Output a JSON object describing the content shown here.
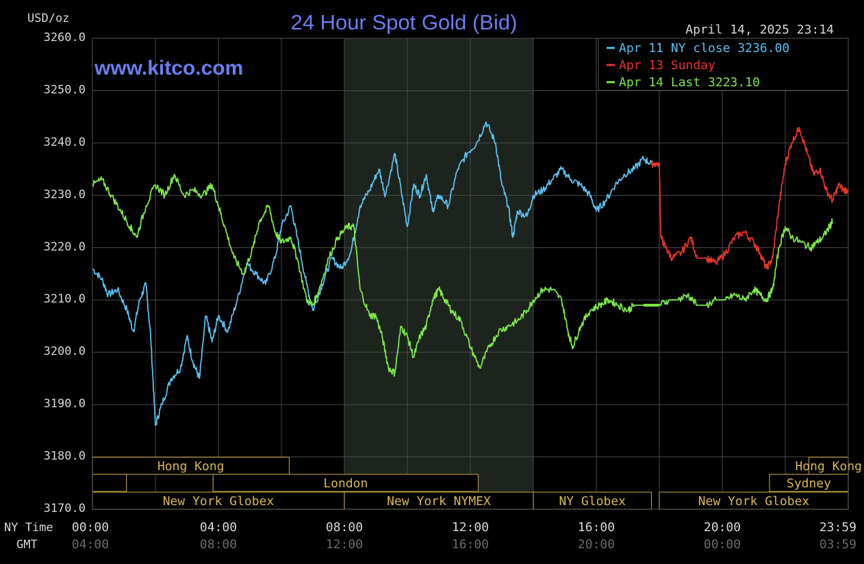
{
  "header": {
    "title": "24 Hour Spot Gold (Bid)",
    "unit": "USD/oz",
    "timestamp": "April 14, 2025 23:14",
    "watermark": "www.kitco.com"
  },
  "legend": [
    {
      "label": "Apr 11 NY close 3236.00",
      "color": "#5bc0f0"
    },
    {
      "label": "Apr 13 Sunday",
      "color": "#e8342a"
    },
    {
      "label": "Apr 14 Last 3223.10",
      "color": "#7de84a"
    }
  ],
  "axis_labels": {
    "ny_time": "NY Time",
    "gmt": "GMT"
  },
  "sessions": {
    "top": [
      {
        "label": "Hong Kong",
        "start": 0,
        "end": 6.25
      },
      {
        "label": "Hong Kong",
        "start": 22.75,
        "end": 24
      }
    ],
    "middle": [
      {
        "label": "",
        "start": 0,
        "end": 1.08
      },
      {
        "label": "London",
        "start": 3.83,
        "end": 12.25
      },
      {
        "label": "Sydney",
        "start": 21.5,
        "end": 24
      }
    ],
    "bottom": [
      {
        "label": "New York Globex",
        "start": 0,
        "end": 8.0
      },
      {
        "label": "New York NYMEX",
        "start": 8.0,
        "end": 14.0
      },
      {
        "label": "NY Globex",
        "start": 14.0,
        "end": 17.75
      },
      {
        "label": "New York Globex",
        "start": 18.0,
        "end": 24
      }
    ]
  },
  "chart_data": {
    "type": "line",
    "title": "24 Hour Spot Gold (Bid)",
    "ylabel": "USD/oz",
    "ylim": [
      3170,
      3260
    ],
    "xlim": [
      0,
      24
    ],
    "yticks": [
      "3260.0",
      "3250.0",
      "3240.0",
      "3230.0",
      "3220.0",
      "3210.0",
      "3200.0",
      "3190.0",
      "3180.0",
      "3170.0"
    ],
    "xticks_ny": [
      "00:00",
      "04:00",
      "08:00",
      "12:00",
      "16:00",
      "20:00",
      "23:59"
    ],
    "xticks_gmt": [
      "04:00",
      "08:00",
      "12:00",
      "16:00",
      "20:00",
      "00:00",
      "03:59"
    ],
    "shaded_region": [
      8.0,
      14.0
    ],
    "grid": true,
    "legend_position": "top-right",
    "series": [
      {
        "name": "Apr 11 NY close 3236.00",
        "color": "#5bc0f0",
        "points": [
          [
            0,
            3216
          ],
          [
            0.3,
            3214
          ],
          [
            0.5,
            3211
          ],
          [
            0.8,
            3212
          ],
          [
            1.1,
            3208
          ],
          [
            1.3,
            3204
          ],
          [
            1.5,
            3210
          ],
          [
            1.7,
            3213
          ],
          [
            1.85,
            3203
          ],
          [
            2.0,
            3186
          ],
          [
            2.2,
            3190
          ],
          [
            2.5,
            3195
          ],
          [
            2.8,
            3197
          ],
          [
            3.0,
            3203
          ],
          [
            3.2,
            3198
          ],
          [
            3.4,
            3195
          ],
          [
            3.6,
            3207
          ],
          [
            3.8,
            3202
          ],
          [
            4.0,
            3207
          ],
          [
            4.3,
            3204
          ],
          [
            4.6,
            3210
          ],
          [
            4.9,
            3217
          ],
          [
            5.2,
            3215
          ],
          [
            5.5,
            3213
          ],
          [
            5.8,
            3218
          ],
          [
            6.0,
            3224
          ],
          [
            6.3,
            3228
          ],
          [
            6.5,
            3222
          ],
          [
            6.8,
            3213
          ],
          [
            7.0,
            3208
          ],
          [
            7.3,
            3213
          ],
          [
            7.6,
            3218
          ],
          [
            7.9,
            3216
          ],
          [
            8.2,
            3219
          ],
          [
            8.5,
            3228
          ],
          [
            8.8,
            3231
          ],
          [
            9.1,
            3235
          ],
          [
            9.3,
            3230
          ],
          [
            9.6,
            3238
          ],
          [
            9.8,
            3231
          ],
          [
            10.0,
            3224
          ],
          [
            10.2,
            3232
          ],
          [
            10.4,
            3230
          ],
          [
            10.6,
            3234
          ],
          [
            10.8,
            3227
          ],
          [
            11.0,
            3230
          ],
          [
            11.3,
            3228
          ],
          [
            11.6,
            3235
          ],
          [
            11.9,
            3238
          ],
          [
            12.2,
            3240
          ],
          [
            12.5,
            3244
          ],
          [
            12.8,
            3240
          ],
          [
            13.0,
            3232
          ],
          [
            13.2,
            3228
          ],
          [
            13.35,
            3222
          ],
          [
            13.5,
            3227
          ],
          [
            13.8,
            3226
          ],
          [
            14.0,
            3230
          ],
          [
            14.3,
            3231
          ],
          [
            14.6,
            3233
          ],
          [
            14.9,
            3235
          ],
          [
            15.2,
            3233
          ],
          [
            15.5,
            3232
          ],
          [
            15.8,
            3230
          ],
          [
            16.0,
            3227
          ],
          [
            16.3,
            3229
          ],
          [
            16.6,
            3232
          ],
          [
            16.9,
            3234
          ],
          [
            17.2,
            3235
          ],
          [
            17.5,
            3237
          ],
          [
            17.75,
            3236
          ]
        ]
      },
      {
        "name": "Apr 13 Sunday",
        "color": "#e8342a",
        "points": [
          [
            17.75,
            3236
          ],
          [
            18.0,
            3236
          ],
          [
            18.05,
            3222
          ],
          [
            18.2,
            3220
          ],
          [
            18.4,
            3218
          ],
          [
            18.7,
            3219
          ],
          [
            19.0,
            3222
          ],
          [
            19.2,
            3218
          ],
          [
            19.5,
            3218
          ],
          [
            19.8,
            3217
          ],
          [
            20.1,
            3219
          ],
          [
            20.4,
            3222
          ],
          [
            20.7,
            3223
          ],
          [
            21.0,
            3221
          ],
          [
            21.2,
            3219
          ],
          [
            21.4,
            3216
          ],
          [
            21.6,
            3218
          ],
          [
            21.8,
            3228
          ],
          [
            22.0,
            3236
          ],
          [
            22.2,
            3240
          ],
          [
            22.45,
            3243
          ],
          [
            22.7,
            3238
          ],
          [
            22.9,
            3234
          ],
          [
            23.1,
            3235
          ],
          [
            23.3,
            3231
          ],
          [
            23.5,
            3229
          ],
          [
            23.7,
            3232
          ],
          [
            23.85,
            3231
          ],
          [
            24.0,
            3231
          ]
        ]
      },
      {
        "name": "Apr 14 Last 3223.10",
        "color": "#7de84a",
        "points": [
          [
            0,
            3232
          ],
          [
            0.3,
            3233
          ],
          [
            0.6,
            3230
          ],
          [
            0.9,
            3227
          ],
          [
            1.2,
            3224
          ],
          [
            1.4,
            3222
          ],
          [
            1.7,
            3228
          ],
          [
            2.0,
            3232
          ],
          [
            2.3,
            3230
          ],
          [
            2.6,
            3234
          ],
          [
            2.9,
            3230
          ],
          [
            3.2,
            3231
          ],
          [
            3.5,
            3230
          ],
          [
            3.8,
            3232
          ],
          [
            4.0,
            3228
          ],
          [
            4.2,
            3224
          ],
          [
            4.5,
            3218
          ],
          [
            4.8,
            3215
          ],
          [
            5.1,
            3220
          ],
          [
            5.3,
            3225
          ],
          [
            5.6,
            3228
          ],
          [
            5.8,
            3223
          ],
          [
            6.0,
            3221
          ],
          [
            6.3,
            3222
          ],
          [
            6.5,
            3218
          ],
          [
            6.8,
            3210
          ],
          [
            7.0,
            3209
          ],
          [
            7.2,
            3212
          ],
          [
            7.5,
            3218
          ],
          [
            7.8,
            3222
          ],
          [
            8.1,
            3224
          ],
          [
            8.3,
            3224
          ],
          [
            8.5,
            3212
          ],
          [
            8.8,
            3207
          ],
          [
            9.0,
            3207
          ],
          [
            9.2,
            3203
          ],
          [
            9.4,
            3197
          ],
          [
            9.6,
            3196
          ],
          [
            9.8,
            3205
          ],
          [
            10.0,
            3203
          ],
          [
            10.2,
            3199
          ],
          [
            10.4,
            3203
          ],
          [
            10.6,
            3205
          ],
          [
            10.8,
            3210
          ],
          [
            11.0,
            3212
          ],
          [
            11.2,
            3210
          ],
          [
            11.4,
            3208
          ],
          [
            11.7,
            3206
          ],
          [
            12.0,
            3201
          ],
          [
            12.3,
            3197
          ],
          [
            12.6,
            3201
          ],
          [
            12.9,
            3204
          ],
          [
            13.2,
            3205
          ],
          [
            13.5,
            3206
          ],
          [
            13.8,
            3208
          ],
          [
            14.0,
            3210
          ],
          [
            14.3,
            3212
          ],
          [
            14.6,
            3212
          ],
          [
            14.9,
            3210
          ],
          [
            15.1,
            3204
          ],
          [
            15.25,
            3201
          ],
          [
            15.5,
            3205
          ],
          [
            15.8,
            3208
          ],
          [
            16.1,
            3209
          ],
          [
            16.4,
            3210
          ],
          [
            16.7,
            3209
          ],
          [
            17.0,
            3208
          ],
          [
            17.2,
            3209
          ],
          [
            17.5,
            3209
          ],
          [
            18.0,
            3209
          ],
          [
            18.3,
            3210
          ],
          [
            18.6,
            3210
          ],
          [
            18.9,
            3211
          ],
          [
            19.2,
            3209
          ],
          [
            19.5,
            3209
          ],
          [
            19.8,
            3210
          ],
          [
            20.1,
            3210
          ],
          [
            20.4,
            3211
          ],
          [
            20.7,
            3210
          ],
          [
            21.0,
            3212
          ],
          [
            21.2,
            3211
          ],
          [
            21.4,
            3210
          ],
          [
            21.6,
            3212
          ],
          [
            21.8,
            3220
          ],
          [
            22.0,
            3224
          ],
          [
            22.2,
            3222
          ],
          [
            22.5,
            3221
          ],
          [
            22.8,
            3220
          ],
          [
            23.0,
            3221
          ],
          [
            23.2,
            3222
          ],
          [
            23.4,
            3224
          ],
          [
            23.5,
            3225
          ]
        ]
      }
    ]
  }
}
